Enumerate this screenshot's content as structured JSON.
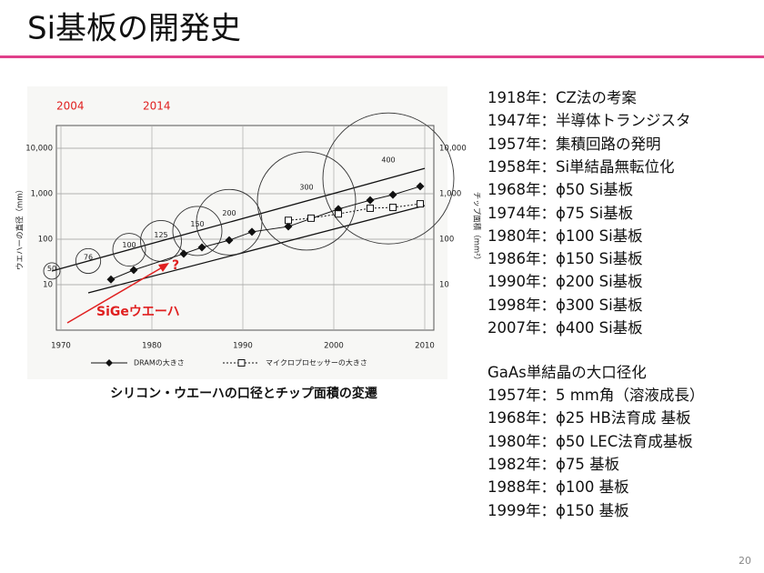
{
  "header": {
    "title": "Si基板の開発史"
  },
  "figure": {
    "type": "line",
    "xlim": [
      1969.5,
      2011
    ],
    "xticks": [
      1970,
      1980,
      1990,
      2000,
      2010
    ],
    "ylim": [
      1,
      31623
    ],
    "log_scale": true,
    "grid": true,
    "yticks": [
      10,
      100,
      {
        "value": 1000,
        "label": "1,000"
      },
      {
        "value": 10000,
        "label": "10,000"
      }
    ],
    "y_label": "ウエハーの直径（mm）",
    "y2_label": "チップ面積（mm²）",
    "trend_lines": [
      {
        "x": [
          1969,
          2010
        ],
        "y": [
          20,
          3600
        ]
      },
      {
        "x": [
          1973,
          2010
        ],
        "y": [
          6.6,
          550
        ]
      }
    ],
    "wafers": {
      "x": [
        1969,
        1973,
        1977.5,
        1981,
        1985,
        1988.5,
        1997,
        2006
      ],
      "diameter": [
        50,
        76,
        100,
        125,
        150,
        200,
        300,
        400
      ]
    },
    "series": [
      {
        "name": "DRAMの大きさ",
        "color": "#111111",
        "marker": "diamond",
        "x": [
          1975.5,
          1978,
          1983.5,
          1985.5,
          1988.5,
          1991,
          1995,
          2000.5,
          2004,
          2006.5,
          2009.5
        ],
        "values": [
          13,
          21,
          48,
          66,
          95,
          145,
          190,
          460,
          720,
          950,
          1450
        ]
      },
      {
        "name": "マイクロプロセッサーの大きさ",
        "color": "#111111",
        "marker": "square",
        "x": [
          1995,
          1997.5,
          2000.5,
          2004,
          2006.5,
          2009.5
        ],
        "values": [
          260,
          290,
          360,
          480,
          500,
          600
        ]
      }
    ],
    "annotations": {
      "year_a": "2004",
      "year_b": "2014",
      "question": "?",
      "sige": "SiGeウエーハ",
      "color": "#e02020"
    },
    "caption": "シリコン・ウエーハの口径とチップ面積の変遷"
  },
  "timeline": {
    "si": [
      "1918年：CZ法の考案",
      "1947年：半導体トランジスタ",
      "1957年：集積回路の発明",
      "1958年：Si単結晶無転位化",
      "1968年：ϕ50 Si基板",
      "1974年：ϕ75 Si基板",
      "1980年：ϕ100 Si基板",
      "1986年：ϕ150 Si基板",
      "1990年：ϕ200 Si基板",
      "1998年：ϕ300 Si基板",
      "2007年：ϕ400 Si基板"
    ],
    "gaas_title": "GaAs単結晶の大口径化",
    "gaas": [
      "1957年：5 mm角（溶液成長）",
      "1968年：ϕ25 HB法育成 基板",
      "1980年：ϕ50 LEC法育成基板",
      "1982年：ϕ75 基板",
      "1988年：ϕ100 基板",
      "1999年：ϕ150 基板"
    ]
  },
  "page_number": "20"
}
